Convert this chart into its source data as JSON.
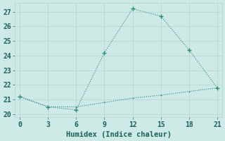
{
  "line1_x": [
    0,
    3,
    6,
    9,
    12,
    15,
    18,
    21
  ],
  "line1_y": [
    21.2,
    20.5,
    20.3,
    24.2,
    27.2,
    26.7,
    24.4,
    21.8
  ],
  "line2_x": [
    0,
    3,
    6,
    9,
    12,
    15,
    18,
    21
  ],
  "line2_y": [
    21.2,
    20.5,
    20.5,
    20.8,
    21.1,
    21.3,
    21.55,
    21.8
  ],
  "line_color": "#2e8b7a",
  "bg_color": "#ceeae6",
  "grid_color": "#b8d8d4",
  "xlabel": "Humidex (Indice chaleur)",
  "xlim": [
    -0.5,
    21.5
  ],
  "ylim": [
    19.8,
    27.6
  ],
  "xticks": [
    0,
    3,
    6,
    9,
    12,
    15,
    18,
    21
  ],
  "yticks": [
    20,
    21,
    22,
    23,
    24,
    25,
    26,
    27
  ],
  "xlabel_fontsize": 7.5,
  "tick_fontsize": 7
}
